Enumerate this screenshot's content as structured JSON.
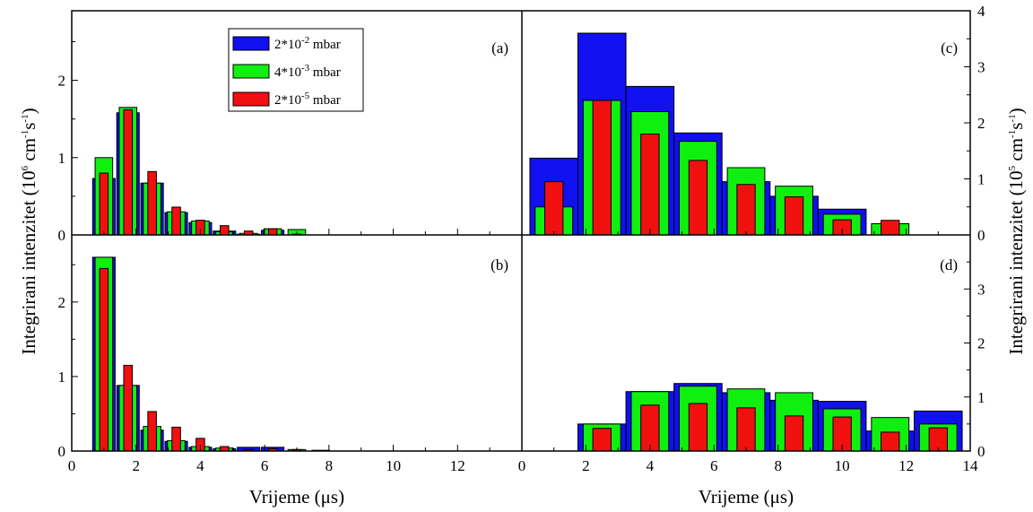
{
  "colors": {
    "series_0": "#1010f0",
    "series_1": "#10f010",
    "series_2": "#f01010"
  },
  "chart_data": {
    "type": "bar",
    "x_title_base": "Vrijeme (",
    "x_title_unit": "μs",
    "x_title_close": ")",
    "y_left_title": {
      "base": "Integrirani intenzitet (10",
      "exp_a": "6",
      "mid": " cm",
      "exp_b": "-1",
      "mid2": "s",
      "exp_c": "-1",
      "end": ")"
    },
    "y_right_title": {
      "base": "Integrirani intenzitet (10",
      "exp_a": "5",
      "mid": " cm",
      "exp_b": "-1",
      "mid2": "s",
      "exp_c": "-1",
      "end": ")"
    },
    "legend": [
      {
        "pre": "2*10",
        "exp": "-2",
        "post": " mbar"
      },
      {
        "pre": "4*10",
        "exp": "-3",
        "post": " mbar"
      },
      {
        "pre": "2*10",
        "exp": "-5",
        "post": " mbar"
      }
    ],
    "panels": [
      {
        "label": "(a)",
        "xlim": [
          0,
          14
        ],
        "ylim": [
          0,
          2.9
        ],
        "xticks": [
          "0",
          "2",
          "4",
          "6",
          "8",
          "10",
          "12"
        ],
        "yticks": [
          "0",
          "1",
          "2"
        ],
        "yticks_vals": [
          0,
          1,
          2
        ],
        "width": 0.7,
        "x": [
          1,
          1.75,
          2.5,
          3.25,
          4,
          4.75,
          5.5,
          6.25,
          7,
          7.75
        ],
        "series": [
          {
            "values": [
              0.73,
              1.58,
              0.67,
              0.29,
              0.16,
              0.05,
              0.01,
              0.06,
              0.0,
              0.0
            ]
          },
          {
            "values": [
              1.0,
              1.65,
              0.67,
              0.3,
              0.18,
              0.04,
              0.02,
              0.08,
              0.07,
              0.0
            ]
          },
          {
            "values": [
              0.8,
              1.62,
              0.82,
              0.36,
              0.19,
              0.12,
              0.05,
              0.08,
              0.01,
              0.0
            ]
          }
        ]
      },
      {
        "label": "(b)",
        "xlim": [
          0,
          14
        ],
        "ylim": [
          0,
          2.9
        ],
        "xticks": [
          "0",
          "2",
          "4",
          "6",
          "8",
          "10",
          "12"
        ],
        "yticks": [
          "0",
          "1",
          "2"
        ],
        "yticks_vals": [
          0,
          1,
          2
        ],
        "width": 0.7,
        "x": [
          1,
          1.75,
          2.5,
          3.25,
          4,
          4.75,
          5.5,
          6.25,
          7,
          7.75
        ],
        "series": [
          {
            "values": [
              2.6,
              0.88,
              0.28,
              0.13,
              0.05,
              0.03,
              0.05,
              0.05,
              0.0,
              0.0
            ]
          },
          {
            "values": [
              2.6,
              0.88,
              0.33,
              0.14,
              0.06,
              0.04,
              0.0,
              0.0,
              0.02,
              0.01
            ]
          },
          {
            "values": [
              2.45,
              1.15,
              0.53,
              0.32,
              0.17,
              0.06,
              0.02,
              0.03,
              0.02,
              0.0
            ]
          }
        ]
      },
      {
        "label": "(c)",
        "xlim": [
          0,
          14
        ],
        "ylim": [
          0,
          4
        ],
        "xticks": [
          "0",
          "2",
          "4",
          "6",
          "8",
          "10",
          "12",
          "14"
        ],
        "yticks": [
          "0",
          "1",
          "2",
          "3",
          "4"
        ],
        "yticks_vals": [
          0,
          1,
          2,
          3,
          4
        ],
        "width": 1.5,
        "x": [
          1,
          2.5,
          4,
          5.5,
          7,
          8.5,
          10,
          11.5,
          13
        ],
        "series": [
          {
            "values": [
              1.37,
              3.6,
              2.65,
              1.82,
              0.95,
              0.69,
              0.46,
              0.0,
              0.0
            ]
          },
          {
            "values": [
              0.5,
              2.4,
              2.2,
              1.67,
              1.2,
              0.87,
              0.37,
              0.2,
              0.0
            ]
          },
          {
            "values": [
              0.95,
              2.4,
              1.8,
              1.33,
              0.9,
              0.68,
              0.27,
              0.26,
              0.0
            ]
          }
        ]
      },
      {
        "label": "(d)",
        "xlim": [
          0,
          14
        ],
        "ylim": [
          0,
          4
        ],
        "xticks": [
          "0",
          "2",
          "4",
          "6",
          "8",
          "10",
          "12",
          "14"
        ],
        "yticks": [
          "0",
          "1",
          "2",
          "3"
        ],
        "yticks_vals": [
          0,
          1,
          2,
          3
        ],
        "width": 1.5,
        "x": [
          1,
          2.5,
          4,
          5.5,
          7,
          8.5,
          10,
          11.5,
          13
        ],
        "series": [
          {
            "values": [
              0.0,
              0.5,
              1.1,
              1.25,
              1.08,
              0.94,
              0.92,
              0.37,
              0.74
            ]
          },
          {
            "values": [
              0.0,
              0.5,
              1.1,
              1.2,
              1.15,
              1.08,
              0.78,
              0.62,
              0.5
            ]
          },
          {
            "values": [
              0.0,
              0.42,
              0.85,
              0.88,
              0.8,
              0.65,
              0.63,
              0.35,
              0.43
            ]
          }
        ]
      }
    ]
  }
}
